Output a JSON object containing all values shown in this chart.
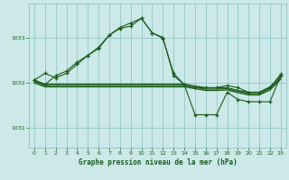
{
  "title": "Graphe pression niveau de la mer (hPa)",
  "bg_color": "#cce8e8",
  "grid_color": "#99cccc",
  "line_color": "#1a5c1a",
  "ylabel_color": "#1a5c1a",
  "ylim": [
    1030.55,
    1033.75
  ],
  "xlim": [
    -0.5,
    23.5
  ],
  "yticks": [
    1031,
    1032,
    1033
  ],
  "xticks": [
    0,
    1,
    2,
    3,
    4,
    5,
    6,
    7,
    8,
    9,
    10,
    11,
    12,
    13,
    14,
    15,
    16,
    17,
    18,
    19,
    20,
    21,
    22,
    23
  ],
  "series": [
    {
      "x": [
        0,
        1,
        2,
        3,
        4,
        5,
        6,
        7,
        8,
        9,
        10,
        11,
        12,
        13,
        14,
        15,
        16,
        17,
        18,
        19,
        20,
        21,
        22,
        23
      ],
      "y": [
        1032.05,
        1032.2,
        1032.1,
        1032.2,
        1032.4,
        1032.6,
        1032.75,
        1033.05,
        1033.2,
        1033.25,
        1033.42,
        1033.1,
        1033.0,
        1032.15,
        1031.95,
        1031.88,
        1031.88,
        1031.88,
        1031.93,
        1031.88,
        1031.78,
        1031.78,
        1031.88,
        1032.18
      ],
      "marker": "+"
    },
    {
      "x": [
        0,
        1,
        2,
        3,
        4,
        5,
        6,
        7,
        8,
        9,
        10,
        11,
        12,
        13,
        14,
        15,
        16,
        17,
        18,
        19,
        20,
        21,
        22,
        23
      ],
      "y": [
        1032.05,
        1031.96,
        1031.96,
        1031.96,
        1031.96,
        1031.96,
        1031.96,
        1031.96,
        1031.96,
        1031.96,
        1031.96,
        1031.96,
        1031.96,
        1031.96,
        1031.96,
        1031.92,
        1031.88,
        1031.88,
        1031.88,
        1031.82,
        1031.78,
        1031.78,
        1031.9,
        1032.14
      ],
      "marker": null
    },
    {
      "x": [
        0,
        1,
        2,
        3,
        4,
        5,
        6,
        7,
        8,
        9,
        10,
        11,
        12,
        13,
        14,
        15,
        16,
        17,
        18,
        19,
        20,
        21,
        22,
        23
      ],
      "y": [
        1032.02,
        1031.93,
        1031.93,
        1031.93,
        1031.93,
        1031.93,
        1031.93,
        1031.93,
        1031.93,
        1031.93,
        1031.93,
        1031.93,
        1031.93,
        1031.93,
        1031.93,
        1031.89,
        1031.85,
        1031.85,
        1031.86,
        1031.8,
        1031.75,
        1031.75,
        1031.86,
        1032.1
      ],
      "marker": null
    },
    {
      "x": [
        0,
        1,
        2,
        3,
        4,
        5,
        6,
        7,
        8,
        9,
        10,
        11,
        12,
        13,
        14,
        15,
        16,
        17,
        18,
        19,
        20,
        21,
        22,
        23
      ],
      "y": [
        1031.99,
        1031.9,
        1031.9,
        1031.9,
        1031.9,
        1031.9,
        1031.9,
        1031.9,
        1031.9,
        1031.9,
        1031.9,
        1031.9,
        1031.9,
        1031.9,
        1031.9,
        1031.86,
        1031.82,
        1031.82,
        1031.83,
        1031.77,
        1031.72,
        1031.72,
        1031.83,
        1032.07
      ],
      "marker": null
    },
    {
      "x": [
        0,
        1,
        2,
        3,
        4,
        5,
        6,
        7,
        8,
        9,
        10,
        11,
        12,
        13,
        14,
        15,
        16,
        17,
        18,
        19,
        20,
        21,
        22,
        23
      ],
      "y": [
        1032.05,
        1031.95,
        1032.15,
        1032.25,
        1032.45,
        1032.6,
        1032.78,
        1033.05,
        1033.22,
        1033.32,
        1033.42,
        1033.1,
        1032.98,
        1032.2,
        1031.95,
        1031.28,
        1031.28,
        1031.28,
        1031.78,
        1031.62,
        1031.57,
        1031.57,
        1031.57,
        1032.15
      ],
      "marker": "+"
    }
  ]
}
